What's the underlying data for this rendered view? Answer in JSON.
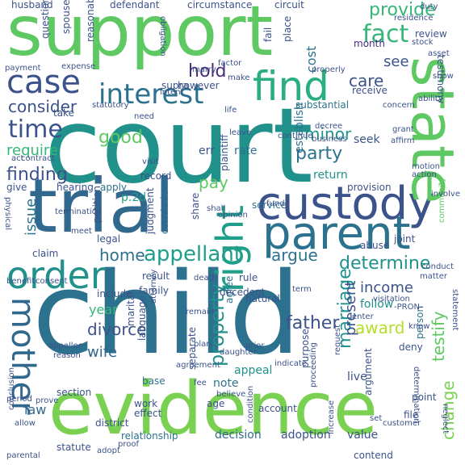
{
  "words": [
    {
      "text": "support",
      "color": "#5ec962"
    },
    {
      "text": "court",
      "color": "#21918c"
    },
    {
      "text": "child",
      "color": "#2c728e"
    },
    {
      "text": "evidence",
      "color": "#7ad151"
    },
    {
      "text": "trial",
      "color": "#31688e"
    },
    {
      "text": "custody",
      "color": "#3b528b"
    },
    {
      "text": "state",
      "color": "#5ec962"
    },
    {
      "text": "parent",
      "color": "#2c728e"
    },
    {
      "text": "find",
      "color": "#28ae80"
    },
    {
      "text": "case",
      "color": "#3b528b"
    },
    {
      "text": "order",
      "color": "#21918c"
    },
    {
      "text": "interest",
      "color": "#2c728e"
    },
    {
      "text": "mother",
      "color": "#31688e"
    },
    {
      "text": "right",
      "color": "#1f9e89"
    },
    {
      "text": "time",
      "color": "#3b528b"
    },
    {
      "text": "appellant",
      "color": "#1f9e89"
    },
    {
      "text": "property",
      "color": "#21918c"
    },
    {
      "text": "marriage",
      "color": "#21918c"
    },
    {
      "text": "fact",
      "color": "#35b779"
    },
    {
      "text": "provide",
      "color": "#35b779"
    },
    {
      "text": "finding",
      "color": "#3b528b"
    },
    {
      "text": "consider",
      "color": "#3b528b"
    },
    {
      "text": "testify",
      "color": "#5ec962"
    },
    {
      "text": "change",
      "color": "#7ad151"
    },
    {
      "text": "determine",
      "color": "#21918c"
    },
    {
      "text": "divorce",
      "color": "#3b528b"
    },
    {
      "text": "father",
      "color": "#3b528b"
    },
    {
      "text": "party",
      "color": "#2c728e"
    },
    {
      "text": "hold",
      "color": "#472d7b"
    },
    {
      "text": "good",
      "color": "#5ec962"
    },
    {
      "text": "care",
      "color": "#3b528b"
    },
    {
      "text": "award",
      "color": "#b5de2b"
    },
    {
      "text": "home",
      "color": "#2c728e"
    },
    {
      "text": "require",
      "color": "#35b779"
    },
    {
      "text": "issue",
      "color": "#2c728e"
    },
    {
      "text": "minor",
      "color": "#21918c"
    },
    {
      "text": "income",
      "color": "#3b528b"
    },
    {
      "text": "present",
      "color": "#3b528b"
    },
    {
      "text": "argue",
      "color": "#2c728e"
    },
    {
      "text": "wife",
      "color": "#31688e"
    },
    {
      "text": "year",
      "color": "#35b779"
    },
    {
      "text": "law",
      "color": "#31688e"
    },
    {
      "text": "pay",
      "color": "#5ec962"
    },
    {
      "text": "see",
      "color": "#3b528b"
    },
    {
      "text": "cost",
      "color": "#2c728e"
    },
    {
      "text": "month",
      "color": "#472d7b"
    },
    {
      "text": "seek",
      "color": "#3b528b"
    },
    {
      "text": "return",
      "color": "#21918c"
    },
    {
      "text": "establish",
      "color": "#2c728e"
    },
    {
      "text": "substantial",
      "color": "#2c728e"
    },
    {
      "text": "receive",
      "color": "#3b528b"
    },
    {
      "text": "legal",
      "color": "#3b528b"
    },
    {
      "text": "hearing",
      "color": "#3b528b"
    },
    {
      "text": "apply",
      "color": "#2c728e"
    },
    {
      "text": "service",
      "color": "#2c728e"
    },
    {
      "text": "follow",
      "color": "#21918c"
    },
    {
      "text": "include",
      "color": "#3b528b"
    },
    {
      "text": "section",
      "color": "#3b528b"
    },
    {
      "text": "statute",
      "color": "#3b528b"
    },
    {
      "text": "relationship",
      "color": "#2c728e"
    },
    {
      "text": "decision",
      "color": "#31688e"
    },
    {
      "text": "adoption",
      "color": "#3b528b"
    },
    {
      "text": "value",
      "color": "#3b528b"
    },
    {
      "text": "appeal",
      "color": "#21918c"
    },
    {
      "text": "family",
      "color": "#3b528b"
    },
    {
      "text": "note",
      "color": "#2c728e"
    },
    {
      "text": "base",
      "color": "#2c728e"
    },
    {
      "text": "result",
      "color": "#3b528b"
    },
    {
      "text": "rule",
      "color": "#3b528b"
    },
    {
      "text": "agree",
      "color": "#2c728e"
    },
    {
      "text": "purpose",
      "color": "#3b528b"
    },
    {
      "text": "argument",
      "color": "#3b528b"
    },
    {
      "text": "live",
      "color": "#3b528b"
    },
    {
      "text": "person",
      "color": "#2c728e"
    },
    {
      "text": "claim",
      "color": "#3b528b"
    },
    {
      "text": "petition",
      "color": "#3b528b"
    },
    {
      "text": "judgment",
      "color": "#3b528b"
    },
    {
      "text": "conclude",
      "color": "#2c728e"
    },
    {
      "text": "p.2d",
      "color": "#1f9e89"
    },
    {
      "text": "err",
      "color": "#3b528b"
    },
    {
      "text": "plaintiff",
      "color": "#3b528b"
    },
    {
      "text": "rate",
      "color": "#2c728e"
    },
    {
      "text": "record",
      "color": "#3b528b"
    },
    {
      "text": "take",
      "color": "#3b528b"
    },
    {
      "text": "give",
      "color": "#3b528b"
    },
    {
      "text": "husband",
      "color": "#3b528b"
    },
    {
      "text": "defendant",
      "color": "#3b528b"
    },
    {
      "text": "circumstance",
      "color": "#3b528b"
    },
    {
      "text": "circuit",
      "color": "#3b528b"
    },
    {
      "text": "question",
      "color": "#3b528b"
    },
    {
      "text": "spouse",
      "color": "#3b528b"
    },
    {
      "text": "reasonable",
      "color": "#3b528b"
    },
    {
      "text": "place",
      "color": "#3b528b"
    },
    {
      "text": "fail",
      "color": "#3b528b"
    },
    {
      "text": "review",
      "color": "#3b528b"
    },
    {
      "text": "testimony",
      "color": "#3b528b"
    },
    {
      "text": "supra",
      "color": "#3b528b"
    },
    {
      "text": "however",
      "color": "#3b528b"
    },
    {
      "text": "intent",
      "color": "#3b528b"
    },
    {
      "text": "payment",
      "color": "#3b528b"
    },
    {
      "text": "concern",
      "color": "#3b528b"
    },
    {
      "text": "community",
      "color": "#5ec962"
    },
    {
      "text": "grant",
      "color": "#3b528b"
    },
    {
      "text": "decree",
      "color": "#3b528b"
    },
    {
      "text": "business",
      "color": "#3b528b"
    },
    {
      "text": "affirm",
      "color": "#3b528b"
    },
    {
      "text": "motion",
      "color": "#3b528b"
    },
    {
      "text": "action",
      "color": "#3b528b"
    },
    {
      "text": "provision",
      "color": "#3b528b"
    },
    {
      "text": "joint",
      "color": "#3b528b"
    },
    {
      "text": "abuse",
      "color": "#3b528b"
    },
    {
      "text": "visitation",
      "color": "#3b528b"
    },
    {
      "text": "term",
      "color": "#3b528b"
    },
    {
      "text": "natural",
      "color": "#3b528b"
    },
    {
      "text": "marital",
      "color": "#3b528b"
    },
    {
      "text": "language",
      "color": "#3b528b"
    },
    {
      "text": "decedent",
      "color": "#3b528b"
    },
    {
      "text": "attorney",
      "color": "#3b528b"
    },
    {
      "text": "district",
      "color": "#3b528b"
    },
    {
      "text": "effect",
      "color": "#3b528b"
    },
    {
      "text": "work",
      "color": "#3b528b"
    },
    {
      "text": "age",
      "color": "#3b528b"
    },
    {
      "text": "account",
      "color": "#3b528b"
    },
    {
      "text": "condition",
      "color": "#3b528b"
    },
    {
      "text": "contend",
      "color": "#3b528b"
    },
    {
      "text": "point",
      "color": "#3b528b"
    },
    {
      "text": "deny",
      "color": "#3b528b"
    },
    {
      "text": "enter",
      "color": "#3b528b"
    },
    {
      "text": "request",
      "color": "#3b528b"
    },
    {
      "text": "separate",
      "color": "#3b528b"
    },
    {
      "text": "daughter",
      "color": "#3b528b"
    },
    {
      "text": "agreement",
      "color": "#3b528b"
    },
    {
      "text": "plan",
      "color": "#3b528b"
    },
    {
      "text": "prior",
      "color": "#3b528b"
    },
    {
      "text": "conclusion",
      "color": "#3b528b"
    },
    {
      "text": "prove",
      "color": "#3b528b"
    },
    {
      "text": "allow",
      "color": "#3b528b"
    },
    {
      "text": "increase",
      "color": "#3b528b"
    },
    {
      "text": "file",
      "color": "#3b528b"
    },
    {
      "text": "physical",
      "color": "#3b528b"
    },
    {
      "text": "contract",
      "color": "#3b528b"
    },
    {
      "text": "appellee",
      "color": "#3b528b"
    },
    {
      "text": "reason",
      "color": "#3b528b"
    },
    {
      "text": "share",
      "color": "#3b528b"
    },
    {
      "text": "shall",
      "color": "#3b528b"
    },
    {
      "text": "leave",
      "color": "#3b528b"
    },
    {
      "text": "life",
      "color": "#3b528b"
    },
    {
      "text": "need",
      "color": "#3b528b"
    },
    {
      "text": "visit",
      "color": "#3b528b"
    },
    {
      "text": "expense",
      "color": "#3b528b"
    },
    {
      "text": "factor",
      "color": "#3b528b"
    },
    {
      "text": "residence",
      "color": "#3b528b"
    },
    {
      "text": "stock",
      "color": "#3b528b"
    },
    {
      "text": "properly",
      "color": "#3b528b"
    },
    {
      "text": "proceeding",
      "color": "#3b528b"
    },
    {
      "text": "opinion",
      "color": "#3b528b"
    },
    {
      "text": "fund",
      "color": "#3b528b"
    },
    {
      "text": "death",
      "color": "#3b528b"
    },
    {
      "text": "termination",
      "color": "#3b528b"
    },
    {
      "text": "fee",
      "color": "#3b528b"
    },
    {
      "text": "believe",
      "color": "#3b528b"
    },
    {
      "text": "benefit",
      "color": "#3b528b"
    },
    {
      "text": "customer",
      "color": "#3b528b"
    },
    {
      "text": "neglect",
      "color": "#3b528b"
    },
    {
      "text": "statement",
      "color": "#3b528b"
    },
    {
      "text": "determination",
      "color": "#3b528b"
    },
    {
      "text": "conduct",
      "color": "#3b528b"
    },
    {
      "text": "involve",
      "color": "#3b528b"
    },
    {
      "text": "know",
      "color": "#3b528b"
    },
    {
      "text": "continue",
      "color": "#3b528b"
    },
    {
      "text": "period",
      "color": "#3b528b"
    },
    {
      "text": "indicate",
      "color": "#3b528b"
    },
    {
      "text": "obligation",
      "color": "#3b528b"
    },
    {
      "text": "duty",
      "color": "#3b528b"
    },
    {
      "text": "show",
      "color": "#3b528b"
    },
    {
      "text": "asset",
      "color": "#3b528b"
    },
    {
      "text": "ability",
      "color": "#3b528b"
    },
    {
      "text": "marry",
      "color": "#3b528b"
    },
    {
      "text": "make",
      "color": "#3b528b"
    },
    {
      "text": "statutory",
      "color": "#3b528b"
    },
    {
      "text": "-PRON-",
      "color": "#3b528b"
    },
    {
      "text": "parental",
      "color": "#3b528b"
    },
    {
      "text": "adopt",
      "color": "#3b528b"
    },
    {
      "text": "proof",
      "color": "#3b528b"
    },
    {
      "text": "consent",
      "color": "#3b528b"
    },
    {
      "text": "meet",
      "color": "#3b528b"
    },
    {
      "text": "remain",
      "color": "#3b528b"
    },
    {
      "text": "matter",
      "color": "#3b528b"
    },
    {
      "text": "set",
      "color": "#3b528b"
    },
    {
      "text": "act",
      "color": "#3b528b"
    }
  ]
}
